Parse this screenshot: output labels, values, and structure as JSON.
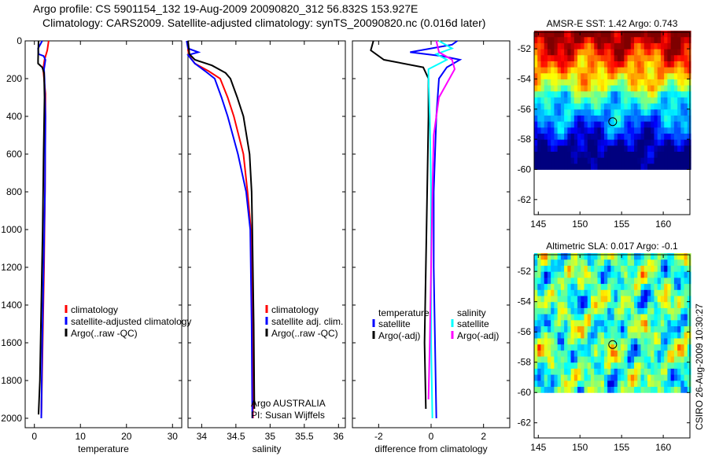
{
  "header": {
    "line1": "Argo profile: CS 5901154_132 19-Aug-2009 20090820_312 56.832S 153.927E",
    "line2": "Climatology: CARS2009. Satellite-adjusted climatology: synTS_20090820.nc (0.016d later)"
  },
  "footer_stamp": "CSIRO 26-Aug-2009 10:30:27",
  "colors": {
    "red": "#ff0000",
    "blue": "#0000ff",
    "black": "#000000",
    "cyan": "#00ffff",
    "magenta": "#ff00ff"
  },
  "chart_data": [
    {
      "type": "line",
      "xlabel": "temperature",
      "ylabel": "",
      "ylim": [
        2050,
        0
      ],
      "xlim": [
        -2,
        32
      ],
      "xticks": [
        0,
        10,
        20,
        30
      ],
      "yticks": [
        0,
        200,
        400,
        600,
        800,
        1000,
        1200,
        1400,
        1600,
        1800,
        2000
      ],
      "legend": [
        "climatology",
        "satellite-adjusted climatology",
        "Argo(..raw -QC)"
      ],
      "series": [
        {
          "name": "climatology",
          "color": "red",
          "points": [
            [
              0,
              3.1
            ],
            [
              50,
              2.8
            ],
            [
              100,
              2.2
            ],
            [
              150,
              1.9
            ],
            [
              200,
              2.1
            ],
            [
              280,
              2.4
            ],
            [
              400,
              2.4
            ],
            [
              800,
              2.3
            ],
            [
              1200,
              2.1
            ],
            [
              1600,
              1.8
            ],
            [
              2000,
              1.5
            ]
          ]
        },
        {
          "name": "satellite-adjusted climatology",
          "color": "blue",
          "points": [
            [
              0,
              1.7
            ],
            [
              40,
              0.8
            ],
            [
              70,
              0.9
            ],
            [
              80,
              2.0
            ],
            [
              100,
              2.4
            ],
            [
              150,
              2.1
            ],
            [
              200,
              2.2
            ],
            [
              400,
              2.4
            ],
            [
              800,
              2.3
            ],
            [
              1200,
              2.0
            ],
            [
              1600,
              1.7
            ],
            [
              2000,
              1.5
            ]
          ]
        },
        {
          "name": "Argo(..raw -QC)",
          "color": "black",
          "points": [
            [
              0,
              0.9
            ],
            [
              100,
              0.8
            ],
            [
              120,
              0.8
            ],
            [
              140,
              1.7
            ],
            [
              170,
              2.1
            ],
            [
              300,
              2.2
            ],
            [
              600,
              2.0
            ],
            [
              1000,
              1.8
            ],
            [
              1400,
              1.5
            ],
            [
              1800,
              1.2
            ],
            [
              1980,
              0.9
            ]
          ]
        }
      ]
    },
    {
      "type": "line",
      "xlabel": "salinity",
      "ylim": [
        2050,
        0
      ],
      "xlim": [
        33.8,
        36.1
      ],
      "xticks": [
        34,
        34.5,
        35,
        35.5,
        36
      ],
      "legend": [
        "climatology",
        "satellite adj. clim.",
        "Argo(..raw -QC)"
      ],
      "annotation": [
        "Argo AUSTRALIA",
        "PI: Susan Wijffels"
      ],
      "series": [
        {
          "name": "climatology",
          "color": "red",
          "points": [
            [
              0,
              33.8
            ],
            [
              50,
              33.8
            ],
            [
              80,
              33.82
            ],
            [
              120,
              33.9
            ],
            [
              160,
              34.1
            ],
            [
              200,
              34.27
            ],
            [
              300,
              34.38
            ],
            [
              400,
              34.47
            ],
            [
              600,
              34.61
            ],
            [
              800,
              34.67
            ],
            [
              1000,
              34.72
            ],
            [
              1500,
              34.74
            ],
            [
              2000,
              34.75
            ]
          ]
        },
        {
          "name": "satellite adj. clim.",
          "color": "blue",
          "points": [
            [
              0,
              33.78
            ],
            [
              40,
              33.8
            ],
            [
              60,
              33.95
            ],
            [
              75,
              33.8
            ],
            [
              120,
              33.9
            ],
            [
              160,
              34.05
            ],
            [
              200,
              34.19
            ],
            [
              300,
              34.29
            ],
            [
              400,
              34.38
            ],
            [
              600,
              34.53
            ],
            [
              800,
              34.65
            ],
            [
              1000,
              34.71
            ],
            [
              1500,
              34.73
            ],
            [
              2000,
              34.74
            ]
          ]
        },
        {
          "name": "Argo(..raw -QC)",
          "color": "black",
          "points": [
            [
              0,
              33.8
            ],
            [
              70,
              33.82
            ],
            [
              100,
              33.9
            ],
            [
              130,
              34.15
            ],
            [
              170,
              34.35
            ],
            [
              200,
              34.42
            ],
            [
              300,
              34.52
            ],
            [
              400,
              34.61
            ],
            [
              600,
              34.7
            ],
            [
              800,
              34.73
            ],
            [
              1000,
              34.74
            ],
            [
              1500,
              34.76
            ],
            [
              1950,
              34.77
            ]
          ]
        }
      ]
    },
    {
      "type": "line",
      "xlabel": "difference from climatology",
      "ylim": [
        2050,
        0
      ],
      "xlim": [
        -3,
        3
      ],
      "xticks": [
        -2,
        0,
        2
      ],
      "legend_temperature": {
        "title": "temperature",
        "items": [
          "satellite",
          "Argo(-adj)"
        ]
      },
      "legend_salinity": {
        "title": "salinity",
        "items": [
          "satellite",
          "Argo(-adj)"
        ]
      },
      "series": [
        {
          "name": "temperature satellite",
          "color": "blue",
          "points": [
            [
              0,
              1.0
            ],
            [
              20,
              0.8
            ],
            [
              60,
              -0.8
            ],
            [
              80,
              0.4
            ],
            [
              100,
              1.1
            ],
            [
              140,
              0.6
            ],
            [
              200,
              0.3
            ],
            [
              400,
              0.2
            ],
            [
              800,
              0.1
            ],
            [
              1200,
              0.1
            ],
            [
              1600,
              0.15
            ],
            [
              2000,
              0.2
            ]
          ]
        },
        {
          "name": "temperature Argo(-adj)",
          "color": "black",
          "points": [
            [
              0,
              -2.2
            ],
            [
              50,
              -2.3
            ],
            [
              100,
              -1.8
            ],
            [
              140,
              -0.3
            ],
            [
              200,
              -0.1
            ],
            [
              400,
              -0.1
            ],
            [
              800,
              -0.15
            ],
            [
              1200,
              -0.2
            ],
            [
              1600,
              -0.25
            ],
            [
              1950,
              -0.2
            ]
          ]
        },
        {
          "name": "salinity satellite",
          "color": "cyan",
          "points": [
            [
              0,
              0.3
            ],
            [
              40,
              0.8
            ],
            [
              70,
              0.2
            ],
            [
              100,
              0.6
            ],
            [
              150,
              -0.1
            ],
            [
              200,
              -0.1
            ],
            [
              400,
              -0.05
            ],
            [
              800,
              0.0
            ],
            [
              1200,
              0.0
            ],
            [
              1600,
              0.0
            ],
            [
              2000,
              0.05
            ]
          ]
        },
        {
          "name": "salinity Argo(-adj)",
          "color": "magenta",
          "points": [
            [
              0,
              0.2
            ],
            [
              60,
              0.3
            ],
            [
              100,
              0.8
            ],
            [
              150,
              0.9
            ],
            [
              200,
              0.7
            ],
            [
              300,
              0.3
            ],
            [
              500,
              0.1
            ],
            [
              800,
              0.05
            ],
            [
              1200,
              0.0
            ],
            [
              1600,
              -0.05
            ],
            [
              1900,
              -0.1
            ]
          ]
        }
      ]
    },
    {
      "type": "heatmap",
      "title": "AMSR-E SST: 1.42 Argo: 0.743",
      "xlim": [
        144.5,
        163.2
      ],
      "ylim": [
        -63,
        -50.9
      ],
      "xticks": [
        145,
        150,
        155,
        160
      ],
      "yticks": [
        -52,
        -54,
        -56,
        -58,
        -60,
        -62
      ],
      "marker": {
        "lon": 153.927,
        "lat": -56.832
      }
    },
    {
      "type": "heatmap",
      "title": "Altimetric SLA: 0.017 Argo: -0.1",
      "xlim": [
        144.5,
        163.2
      ],
      "ylim": [
        -63,
        -50.9
      ],
      "xticks": [
        145,
        150,
        155,
        160
      ],
      "yticks": [
        -52,
        -54,
        -56,
        -58,
        -60,
        -62
      ],
      "marker": {
        "lon": 153.927,
        "lat": -56.832
      }
    }
  ]
}
